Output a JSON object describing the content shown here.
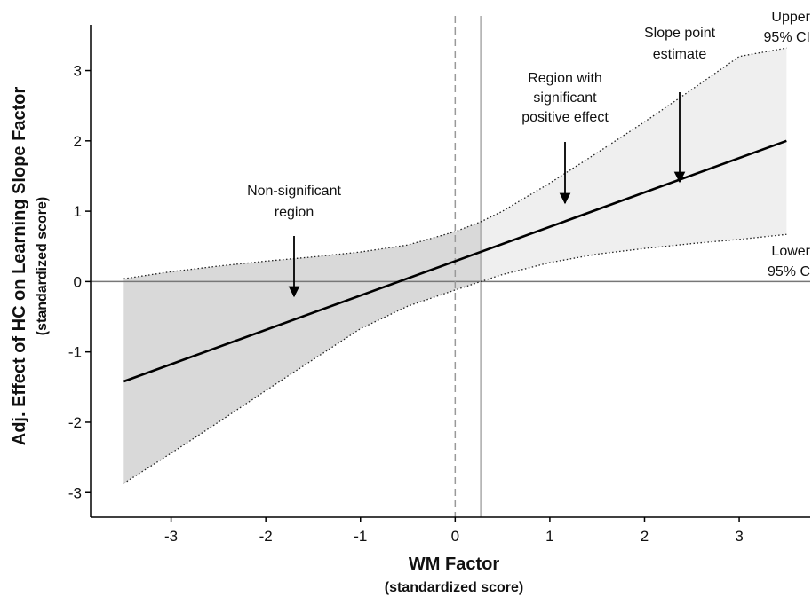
{
  "chart_data": {
    "type": "line",
    "xlabel": "WM Factor",
    "xlabel_sub": "(standardized score)",
    "ylabel": "Adj. Effect of HC on Learning Slope Factor",
    "ylabel_sub": "(standardized score)",
    "xlim": [
      -3.85,
      3.75
    ],
    "ylim": [
      -3.35,
      3.65
    ],
    "x_ticks": [
      -3,
      -2,
      -1,
      0,
      1,
      2,
      3
    ],
    "y_ticks": [
      -3,
      -2,
      -1,
      0,
      1,
      2,
      3
    ],
    "x_tick_labels": [
      "-3",
      "-2",
      "-1",
      "0",
      "1",
      "2",
      "3"
    ],
    "y_tick_labels": [
      "-3",
      "-2",
      "-1",
      "0",
      "1",
      "2",
      "3"
    ],
    "grid": false,
    "reference_lines": {
      "y_zero": 0,
      "x_zero_dashed": 0,
      "x_significance_threshold": 0.27
    },
    "series": [
      {
        "x": [
          -3.5,
          3.5
        ],
        "values": [
          -1.42,
          2.0
        ]
      },
      {
        "x": [
          -3.5,
          -3.0,
          -2.5,
          -2.0,
          -1.5,
          -1.0,
          -0.5,
          0.0,
          0.27,
          0.5,
          1.0,
          1.5,
          2.0,
          2.5,
          3.0,
          3.5
        ],
        "values": [
          0.04,
          0.14,
          0.22,
          0.29,
          0.35,
          0.42,
          0.52,
          0.71,
          0.85,
          1.0,
          1.4,
          1.83,
          2.27,
          2.73,
          3.2,
          3.32
        ]
      },
      {
        "x": [
          -3.5,
          -3.0,
          -2.5,
          -2.0,
          -1.5,
          -1.0,
          -0.5,
          0.0,
          0.27,
          0.5,
          1.0,
          1.5,
          2.0,
          2.5,
          3.0,
          3.5
        ],
        "values": [
          -2.87,
          -2.44,
          -2.0,
          -1.55,
          -1.11,
          -0.67,
          -0.35,
          -0.12,
          0.0,
          0.1,
          0.27,
          0.39,
          0.47,
          0.54,
          0.6,
          0.67
        ]
      }
    ],
    "shading": {
      "nonsignificant_fill": "#d9d9d9",
      "significant_fill": "#efefef"
    },
    "annotations": [
      {
        "id": "nonsig",
        "lines": [
          "Non-significant",
          "region"
        ]
      },
      {
        "id": "sigpos",
        "lines": [
          "Region with",
          "significant",
          "positive effect"
        ]
      },
      {
        "id": "slope",
        "lines": [
          "Slope point",
          "estimate"
        ]
      },
      {
        "id": "upper",
        "lines": [
          "Upper",
          "95% CI"
        ]
      },
      {
        "id": "lower",
        "lines": [
          "Lower",
          "95% C"
        ]
      }
    ]
  }
}
